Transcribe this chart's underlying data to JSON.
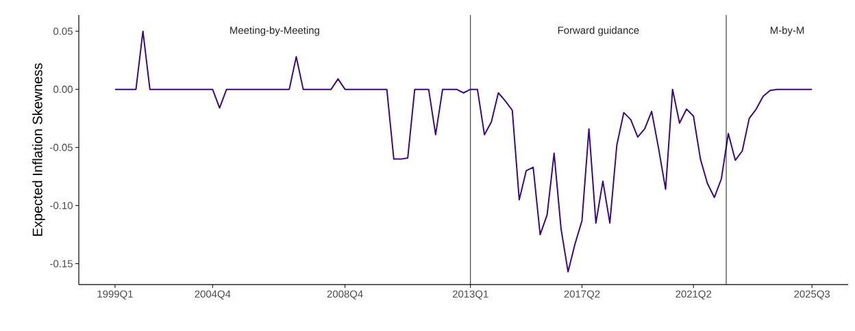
{
  "chart_data": {
    "type": "line",
    "ylabel": "Expected Inflation Skewness",
    "categories": [
      "1999Q1",
      null,
      null,
      null,
      null,
      null,
      null,
      null,
      null,
      null,
      null,
      null,
      null,
      null,
      "2004Q4",
      null,
      null,
      null,
      null,
      null,
      null,
      null,
      null,
      null,
      null,
      null,
      null,
      null,
      null,
      null,
      null,
      null,
      null,
      "2008Q4",
      null,
      null,
      null,
      null,
      null,
      null,
      null,
      null,
      null,
      null,
      null,
      null,
      null,
      null,
      null,
      null,
      null,
      "2013Q1",
      null,
      null,
      null,
      null,
      null,
      null,
      null,
      null,
      null,
      null,
      null,
      null,
      null,
      null,
      null,
      "2017Q2",
      null,
      null,
      null,
      null,
      null,
      null,
      null,
      null,
      null,
      null,
      null,
      null,
      null,
      null,
      null,
      "2021Q2",
      null,
      null,
      null,
      null,
      null,
      null,
      null,
      null,
      null,
      null,
      null,
      null,
      null,
      null,
      null,
      null,
      "2025Q3"
    ],
    "series": [
      {
        "color": "#3a0a78",
        "values": [
          0,
          0,
          0,
          0,
          0.05,
          0,
          0,
          0,
          0,
          0,
          0,
          0,
          0,
          0,
          0,
          -0.016,
          0,
          0,
          0,
          0,
          0,
          0,
          0,
          0,
          0,
          0,
          0.028,
          0,
          0,
          0,
          0,
          0,
          0.009,
          0,
          0,
          0,
          0,
          0,
          0,
          0,
          -0.06,
          -0.06,
          -0.059,
          0,
          0,
          0,
          -0.039,
          0,
          0,
          0,
          -0.003,
          0,
          0,
          -0.039,
          -0.028,
          -0.003,
          -0.01,
          -0.018,
          -0.095,
          -0.07,
          -0.067,
          -0.125,
          -0.108,
          -0.055,
          -0.12,
          -0.157,
          -0.133,
          -0.113,
          -0.034,
          -0.115,
          -0.079,
          -0.115,
          -0.048,
          -0.02,
          -0.026,
          -0.041,
          -0.034,
          -0.019,
          -0.051,
          -0.086,
          0,
          -0.029,
          -0.017,
          -0.023,
          -0.06,
          -0.081,
          -0.093,
          -0.077,
          -0.038,
          -0.061,
          -0.053,
          -0.025,
          -0.017,
          -0.006,
          -0.001,
          0,
          0,
          0,
          0,
          0,
          0
        ]
      }
    ],
    "ylim": [
      -0.168,
      0.064
    ],
    "yticks": [
      {
        "value": 0.05,
        "label": "0.05"
      },
      {
        "value": 0,
        "label": "0.00"
      },
      {
        "value": -0.05,
        "label": "-0.05"
      },
      {
        "value": -0.1,
        "label": "-0.10"
      },
      {
        "value": -0.15,
        "label": "-0.15"
      }
    ],
    "ref_lines": [
      {
        "axis": "x",
        "value": "2013Q1",
        "color": "#000000"
      }
    ],
    "annotations": [
      "Meeting-by-Meeting",
      "Forward guidance",
      "M-by-M"
    ],
    "grid": false,
    "legend": false,
    "marker": "none",
    "line_style": "solid"
  }
}
